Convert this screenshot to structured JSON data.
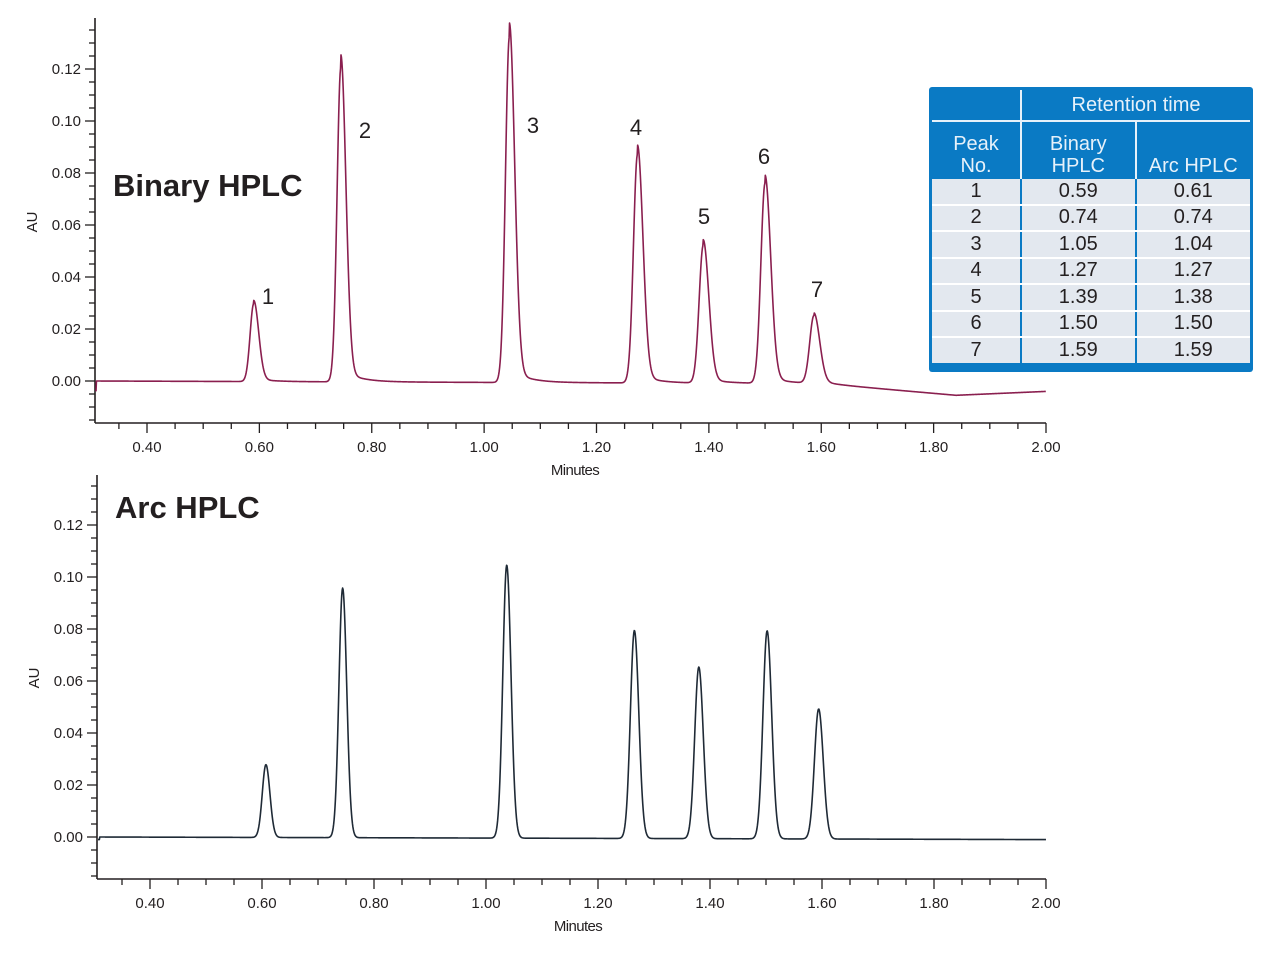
{
  "chart_data": [
    {
      "type": "line",
      "title": "Binary HPLC",
      "xlabel": "Minutes",
      "ylabel": "AU",
      "xlim": [
        0.31,
        2.0
      ],
      "ylim": [
        -0.016,
        0.138
      ],
      "x_ticks": [
        "0.40",
        "0.60",
        "0.80",
        "1.00",
        "1.20",
        "1.40",
        "1.60",
        "1.80",
        "2.00"
      ],
      "y_ticks": [
        "0.00",
        "0.02",
        "0.04",
        "0.06",
        "0.08",
        "0.10",
        "0.12"
      ],
      "grid": false,
      "line_color": "#8a1f4f",
      "series": [
        {
          "name": "Binary HPLC chromatogram",
          "peaks": [
            {
              "label": "1",
              "rt": 0.59,
              "height": 0.03
            },
            {
              "label": "2",
              "rt": 0.745,
              "height": 0.121
            },
            {
              "label": "3",
              "rt": 1.045,
              "height": 0.133
            },
            {
              "label": "4",
              "rt": 1.273,
              "height": 0.088
            },
            {
              "label": "5",
              "rt": 1.39,
              "height": 0.053
            },
            {
              "label": "6",
              "rt": 1.5,
              "height": 0.077
            },
            {
              "label": "7",
              "rt": 1.587,
              "height": 0.026
            }
          ],
          "baseline_drift": [
            [
              0.31,
              0.0
            ],
            [
              1.6,
              -0.001
            ],
            [
              1.84,
              -0.0055
            ],
            [
              2.0,
              -0.004
            ]
          ]
        }
      ],
      "annotations": [
        "1",
        "2",
        "3",
        "4",
        "5",
        "6",
        "7"
      ]
    },
    {
      "type": "line",
      "title": "Arc HPLC",
      "xlabel": "Minutes",
      "ylabel": "AU",
      "xlim": [
        0.31,
        2.0
      ],
      "ylim": [
        -0.016,
        0.138
      ],
      "x_ticks": [
        "0.40",
        "0.60",
        "0.80",
        "1.00",
        "1.20",
        "1.40",
        "1.60",
        "1.80",
        "2.00"
      ],
      "y_ticks": [
        "0.00",
        "0.02",
        "0.04",
        "0.06",
        "0.08",
        "0.10",
        "0.12"
      ],
      "grid": false,
      "line_color": "#1f2a36",
      "series": [
        {
          "name": "Arc HPLC chromatogram",
          "peaks": [
            {
              "label": "1",
              "rt": 0.607,
              "height": 0.028
            },
            {
              "label": "2",
              "rt": 0.744,
              "height": 0.096
            },
            {
              "label": "3",
              "rt": 1.037,
              "height": 0.105
            },
            {
              "label": "4",
              "rt": 1.265,
              "height": 0.08
            },
            {
              "label": "5",
              "rt": 1.38,
              "height": 0.066
            },
            {
              "label": "6",
              "rt": 1.502,
              "height": 0.08
            },
            {
              "label": "7",
              "rt": 1.594,
              "height": 0.05
            }
          ],
          "baseline_drift": [
            [
              0.31,
              0.0
            ],
            [
              2.0,
              -0.001
            ]
          ]
        }
      ]
    },
    {
      "type": "table",
      "title": "Retention time",
      "columns": [
        "Peak No.",
        "Binary HPLC",
        "Arc HPLC"
      ],
      "rows": [
        [
          "1",
          "0.59",
          "0.61"
        ],
        [
          "2",
          "0.74",
          "0.74"
        ],
        [
          "3",
          "1.05",
          "1.04"
        ],
        [
          "4",
          "1.27",
          "1.27"
        ],
        [
          "5",
          "1.39",
          "1.38"
        ],
        [
          "6",
          "1.50",
          "1.50"
        ],
        [
          "7",
          "1.59",
          "1.59"
        ]
      ]
    }
  ],
  "panels": {
    "top": {
      "title": "Binary HPLC",
      "ylabel": "AU",
      "xlabel": "Minutes"
    },
    "bottom": {
      "title": "Arc HPLC",
      "ylabel": "AU",
      "xlabel": "Minutes"
    }
  },
  "table": {
    "group_header": "Retention time",
    "col_peak_line1": "Peak",
    "col_peak_line2": "No.",
    "col_binary_line1": "Binary",
    "col_binary_line2": "HPLC",
    "col_arc": "Arc HPLC",
    "rows": [
      {
        "peak": "1",
        "binary": "0.59",
        "arc": "0.61"
      },
      {
        "peak": "2",
        "binary": "0.74",
        "arc": "0.74"
      },
      {
        "peak": "3",
        "binary": "1.05",
        "arc": "1.04"
      },
      {
        "peak": "4",
        "binary": "1.27",
        "arc": "1.27"
      },
      {
        "peak": "5",
        "binary": "1.39",
        "arc": "1.38"
      },
      {
        "peak": "6",
        "binary": "1.50",
        "arc": "1.50"
      },
      {
        "peak": "7",
        "binary": "1.59",
        "arc": "1.59"
      }
    ],
    "colors": {
      "frame": "#0a7ac4",
      "cell": "#e3e8ef",
      "header_text": "#e6f1fa"
    }
  }
}
